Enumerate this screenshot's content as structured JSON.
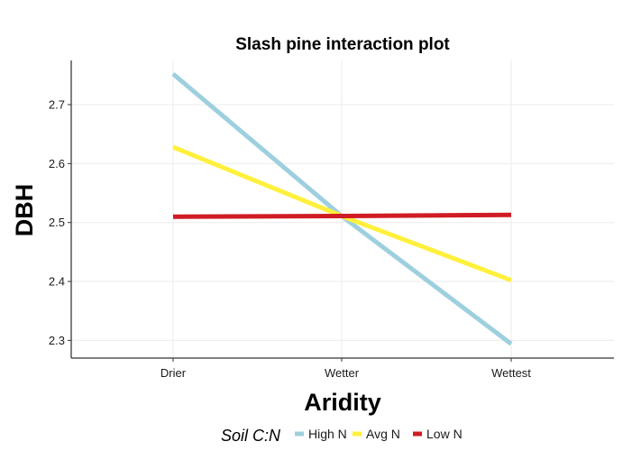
{
  "chart_data": {
    "type": "line",
    "title": "Slash pine interaction plot",
    "xlabel": "Aridity",
    "ylabel": "DBH",
    "categories": [
      "Drier",
      "Wetter",
      "Wettest"
    ],
    "ylim": [
      2.27,
      2.775
    ],
    "yticks": [
      2.3,
      2.4,
      2.5,
      2.6,
      2.7
    ],
    "ytick_labels": [
      "2.3",
      "2.4",
      "2.5",
      "2.6",
      "2.7"
    ],
    "grid": true,
    "legend": {
      "title": "Soil C:N",
      "position": "bottom"
    },
    "series": [
      {
        "name": "High N",
        "color": "#9ecfdf",
        "values": [
          2.752,
          2.511,
          2.294
        ]
      },
      {
        "name": "Avg N",
        "color": "#fff03c",
        "values": [
          2.628,
          2.511,
          2.402
        ]
      },
      {
        "name": "Low N",
        "color": "#d01c24",
        "values": [
          2.51,
          2.511,
          2.513
        ]
      }
    ]
  }
}
